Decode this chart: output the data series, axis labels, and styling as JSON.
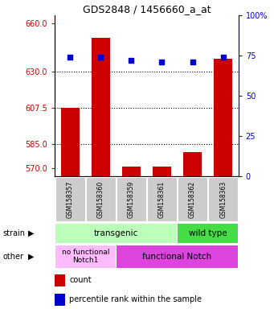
{
  "title": "GDS2848 / 1456660_a_at",
  "samples": [
    "GSM158357",
    "GSM158360",
    "GSM158359",
    "GSM158361",
    "GSM158362",
    "GSM158363"
  ],
  "counts": [
    607.5,
    651,
    571,
    571,
    580,
    638
  ],
  "percentiles": [
    74,
    74,
    72,
    71,
    71,
    74
  ],
  "ylim_left": [
    565,
    665
  ],
  "ylim_right": [
    0,
    100
  ],
  "yticks_left": [
    570,
    585,
    607.5,
    630,
    660
  ],
  "yticks_right": [
    0,
    25,
    50,
    75,
    100
  ],
  "hlines": [
    585,
    607.5,
    630
  ],
  "strain_labels": [
    "transgenic",
    "wild type"
  ],
  "other_labels": [
    "no functional\nNotch1",
    "functional Notch"
  ],
  "bar_color": "#cc0000",
  "dot_color": "#0000cc",
  "strain_color_transgenic": "#bbffbb",
  "strain_color_wildtype": "#44dd44",
  "other_color_nofunc": "#ffbbff",
  "other_color_func": "#dd44dd",
  "tick_color_left": "#cc0000",
  "tick_color_right": "#0000cc",
  "legend_count_color": "#cc0000",
  "legend_pct_color": "#0000cc",
  "bg_color": "#ffffff"
}
